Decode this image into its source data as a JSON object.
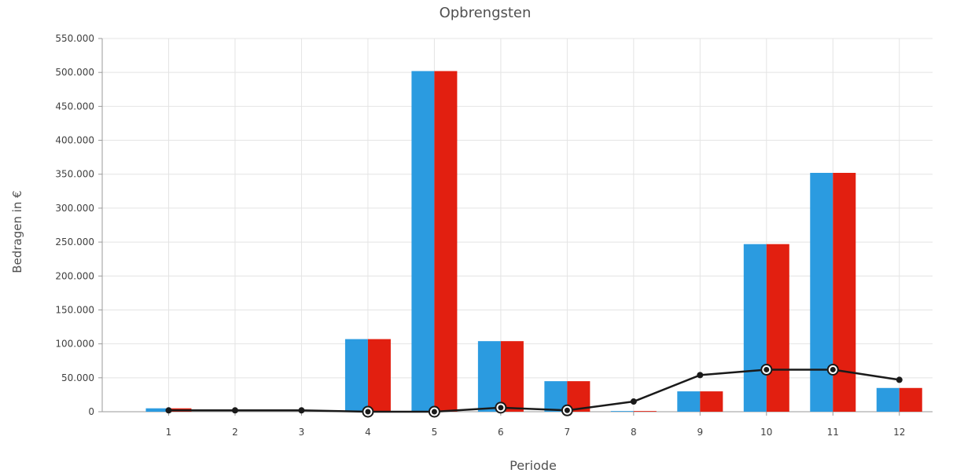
{
  "chart_data": {
    "type": "bar",
    "title": "Opbrengsten",
    "xlabel": "Periode",
    "ylabel": "Bedragen in €",
    "categories": [
      "1",
      "2",
      "3",
      "4",
      "5",
      "6",
      "7",
      "8",
      "9",
      "10",
      "11",
      "12"
    ],
    "ylim": [
      0,
      550000
    ],
    "yticks": [
      "0",
      "50.000",
      "100.000",
      "150.000",
      "200.000",
      "250.000",
      "300.000",
      "350.000",
      "400.000",
      "450.000",
      "500.000",
      "550.000"
    ],
    "ytick_values": [
      0,
      50000,
      100000,
      150000,
      200000,
      250000,
      300000,
      350000,
      400000,
      450000,
      500000,
      550000
    ],
    "grid": true,
    "series": [
      {
        "type": "bar",
        "color": "#2b9be0",
        "values": [
          5000,
          0,
          0,
          107000,
          502000,
          104000,
          45000,
          1000,
          30000,
          247000,
          352000,
          35000
        ]
      },
      {
        "type": "bar",
        "color": "#e21f10",
        "values": [
          5000,
          0,
          0,
          107000,
          502000,
          104000,
          45000,
          1000,
          30000,
          247000,
          352000,
          35000
        ]
      },
      {
        "type": "line",
        "color": "#1a1a1a",
        "values": [
          2000,
          2000,
          2000,
          0,
          0,
          6000,
          2000,
          15000,
          54000,
          62000,
          62000,
          47000
        ],
        "highlighted": [
          false,
          false,
          false,
          true,
          true,
          true,
          true,
          false,
          false,
          true,
          true,
          false
        ]
      }
    ]
  }
}
